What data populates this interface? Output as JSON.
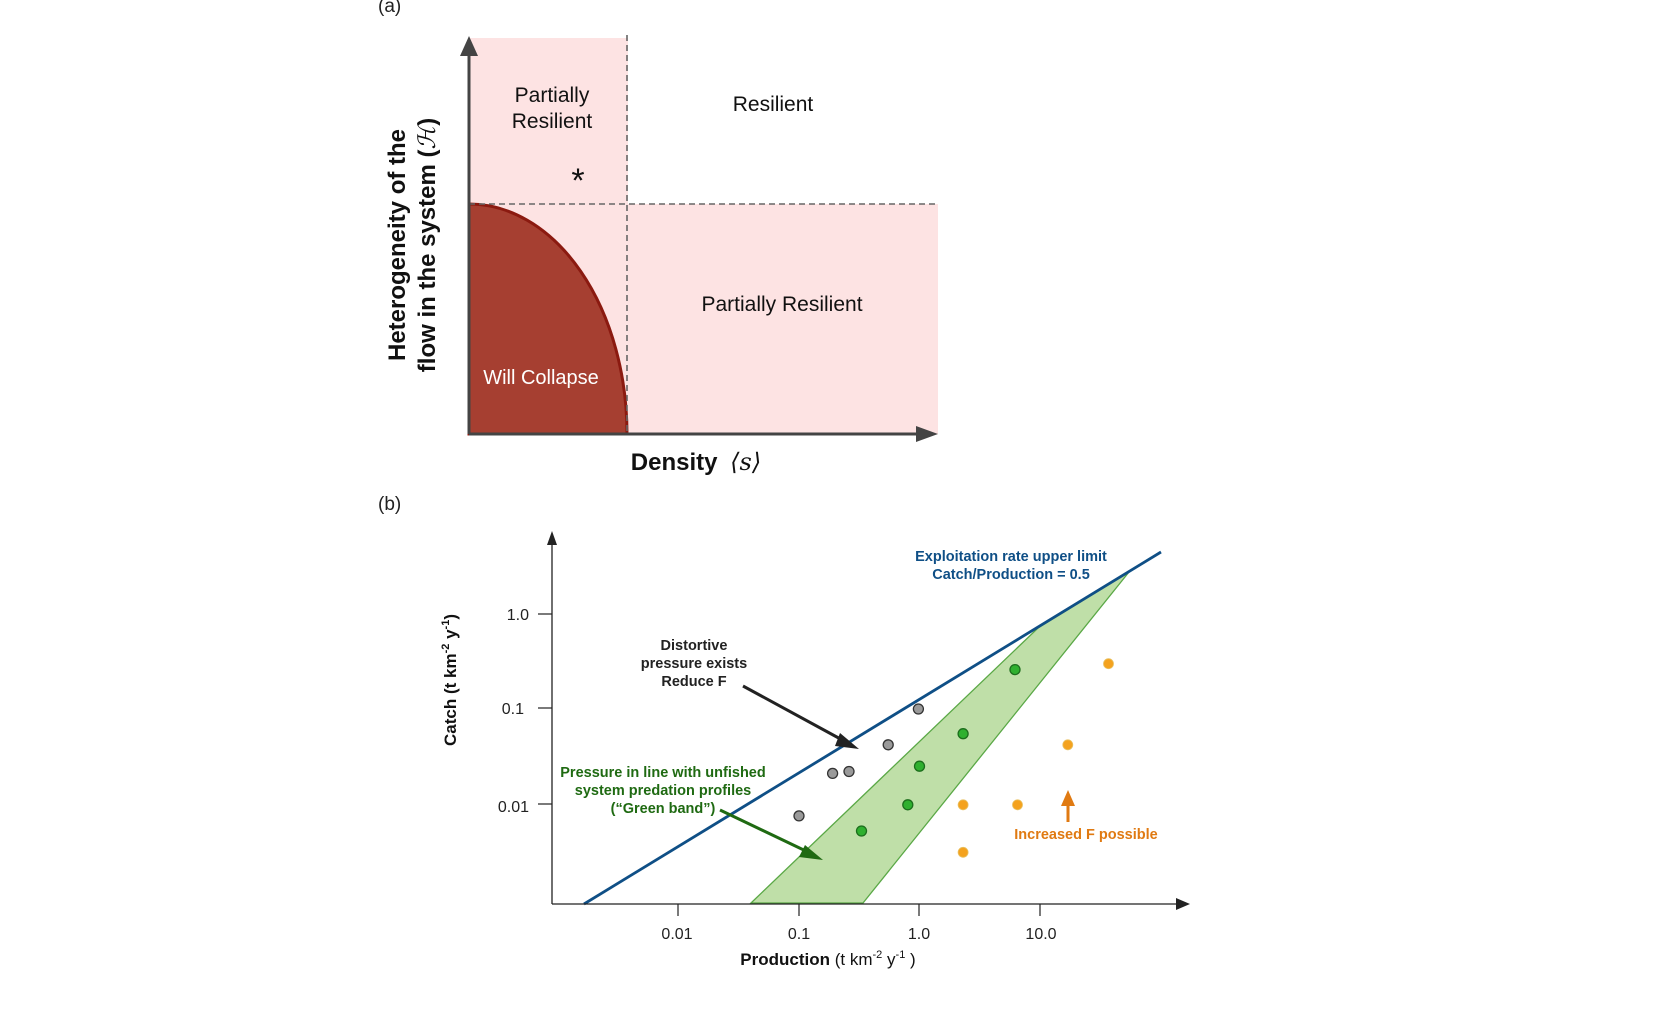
{
  "panel_a": {
    "label": "(a)",
    "y_axis_line1": "Heterogeneity of the",
    "y_axis_line2": "flow in the system (",
    "y_axis_symbol": "ℋ",
    "y_axis_close": ")",
    "x_axis_label": "Density",
    "x_axis_symbol": "⟨s⟩",
    "regions": {
      "top_left_line1": "Partially",
      "top_left_line2": "Resilient",
      "top_right": "Resilient",
      "bottom_right": "Partially Resilient",
      "collapse": "Will Collapse"
    },
    "marker": "*",
    "colors": {
      "partial": "#fde3e3",
      "collapse": "#a63f31",
      "collapse_edge": "#8b1a10",
      "axis": "#444444"
    }
  },
  "panel_b": {
    "label": "(b)",
    "y_axis_label": "Catch (t km",
    "y_sup1": "-2",
    "y_mid": " y",
    "y_sup2": "-1",
    "y_close": ")",
    "x_axis_bold": "Production",
    "x_axis_rest": " (t km",
    "x_sup1": "-2",
    "x_mid": " y",
    "x_sup2": "-1",
    "x_close": " )",
    "y_ticks": [
      "1.0",
      "0.1",
      "0.01"
    ],
    "x_ticks": [
      "0.01",
      "0.1",
      "1.0",
      "10.0"
    ],
    "upper_limit_line1": "Exploitation rate upper limit",
    "upper_limit_line2": "Catch/Production = 0.5",
    "distortive_line1": "Distortive",
    "distortive_line2": "pressure exists",
    "distortive_line3": "Reduce F",
    "green_line1": "Pressure in line with unfished",
    "green_line2": "system predation profiles",
    "green_line3": "(“Green band”)",
    "increase_label": "Increased F possible",
    "colors": {
      "blue": "#0f4f86",
      "green_fill": "#bfdfa8",
      "green_edge": "#5aa846",
      "green_dot": "#2fb02f",
      "grey_dot": "#9a9a9a",
      "orange_dot": "#f4a21e",
      "orange_text": "#e07a12",
      "green_text": "#1f6a12",
      "black": "#222222"
    }
  },
  "chart_data": {
    "type": "scatter",
    "x_scale": "log",
    "y_scale": "log",
    "xlabel": "Production (t km-2 y-1 )",
    "ylabel": "Catch (t km-2 y-1)",
    "x_ticks": [
      0.01,
      0.1,
      1.0,
      10.0
    ],
    "y_ticks": [
      1.0,
      0.1,
      0.01
    ],
    "series": [
      {
        "name": "Distortive pressure exists",
        "color": "#9a9a9a",
        "points": [
          [
            0.1,
            0.0075
          ],
          [
            0.19,
            0.021
          ],
          [
            0.26,
            0.022
          ],
          [
            0.55,
            0.042
          ],
          [
            0.98,
            0.1
          ]
        ]
      },
      {
        "name": "Green band",
        "color": "#2fb02f",
        "points": [
          [
            0.33,
            0.0052
          ],
          [
            0.8,
            0.0098
          ],
          [
            1.0,
            0.025
          ],
          [
            2.3,
            0.055
          ],
          [
            6.2,
            0.26
          ]
        ]
      },
      {
        "name": "Increased F possible",
        "color": "#f4a21e",
        "points": [
          [
            2.3,
            0.0031
          ],
          [
            2.3,
            0.0098
          ],
          [
            6.5,
            0.0098
          ],
          [
            17,
            0.042
          ],
          [
            37,
            0.3
          ]
        ]
      }
    ],
    "upper_limit_ratio": 0.5
  }
}
